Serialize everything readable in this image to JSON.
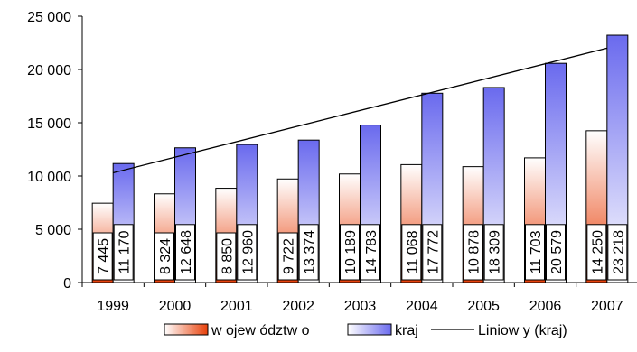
{
  "chart_data": {
    "type": "bar",
    "categories": [
      "1999",
      "2000",
      "2001",
      "2002",
      "2003",
      "2004",
      "2005",
      "2006",
      "2007"
    ],
    "series": [
      {
        "name": "w ojew ództw o",
        "values": [
          7445,
          8324,
          8850,
          9722,
          10189,
          11068,
          10878,
          11703,
          14250
        ],
        "labels": [
          "7 445",
          "8 324",
          "8 850",
          "9 722",
          "10 189",
          "11 068",
          "10 878",
          "11 703",
          "14 250"
        ],
        "gradient": [
          "#e8400a",
          "#ffffff"
        ]
      },
      {
        "name": "kraj",
        "values": [
          11170,
          12648,
          12960,
          13374,
          14783,
          17772,
          18309,
          20579,
          23218
        ],
        "labels": [
          "11 170",
          "12 648",
          "12 960",
          "13 374",
          "14 783",
          "17 772",
          "18 309",
          "20 579",
          "23 218"
        ],
        "gradient": [
          "#ffffff",
          "#6a6aee"
        ]
      }
    ],
    "trendline": {
      "name": "Liniow y (kraj)",
      "of_series": "kraj",
      "start": 10300,
      "end": 22000
    },
    "ylim": [
      0,
      25000
    ],
    "yticks": [
      0,
      5000,
      10000,
      15000,
      20000,
      25000
    ],
    "ytick_labels": [
      "0",
      "5 000",
      "10 000",
      "15 000",
      "20 000",
      "25 000"
    ],
    "grid": false,
    "legend_position": "bottom"
  }
}
